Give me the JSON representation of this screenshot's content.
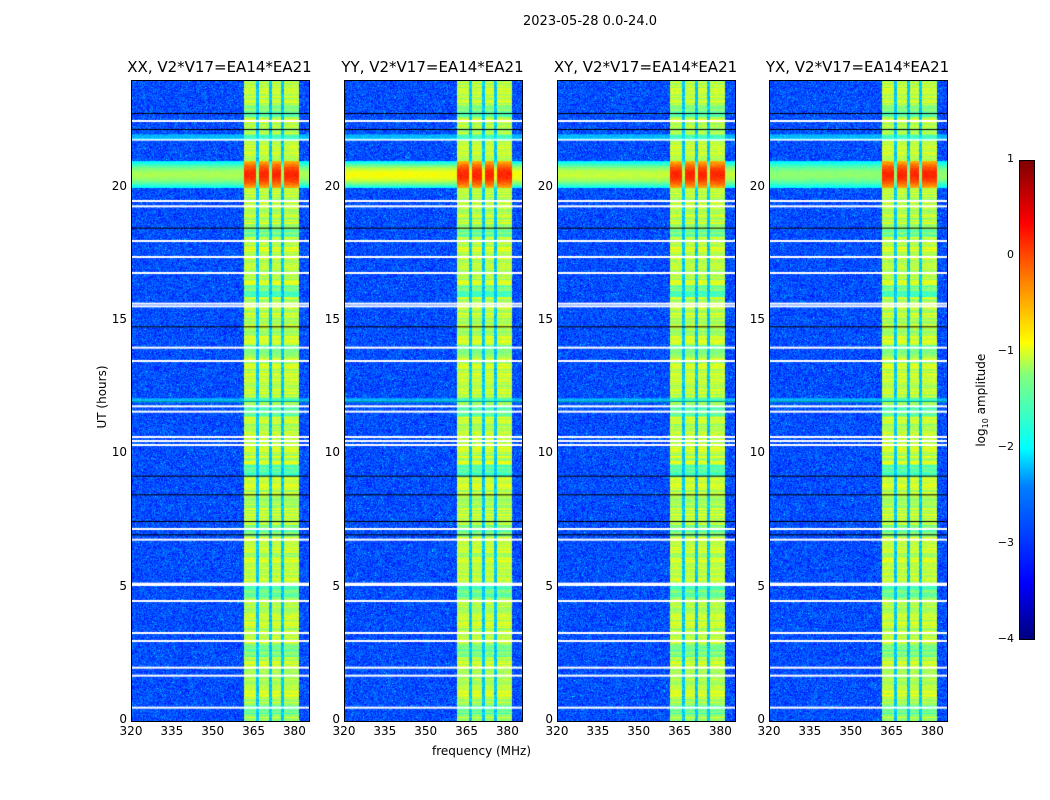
{
  "suptitle": "2023-05-28 0.0-24.0",
  "chart_data": {
    "type": "heatmap",
    "panels": [
      {
        "title": "XX, V2*V17=EA14*EA21",
        "flare_strength": 0.7
      },
      {
        "title": "YY, V2*V17=EA14*EA21",
        "flare_strength": 1.0
      },
      {
        "title": "XY, V2*V17=EA14*EA21",
        "flare_strength": 0.8
      },
      {
        "title": "YX, V2*V17=EA14*EA21",
        "flare_strength": 0.6
      }
    ],
    "xlabel": "frequency (MHz)",
    "ylabel": "UT (hours)",
    "xlim": [
      320,
      385
    ],
    "ylim": [
      0,
      24
    ],
    "xticks": [
      "320",
      "335",
      "350",
      "365",
      "380"
    ],
    "xtick_values": [
      320,
      335,
      350,
      365,
      380
    ],
    "yticks": [
      "0",
      "5",
      "10",
      "15",
      "20"
    ],
    "ytick_values": [
      0,
      5,
      10,
      15,
      20
    ],
    "colorbar": {
      "label": "log10 amplitude",
      "ticks": [
        "1",
        "0",
        "−1",
        "−2",
        "−3",
        "−4"
      ],
      "tick_values": [
        1,
        0,
        -1,
        -2,
        -3,
        -4
      ],
      "range": [
        -4,
        1
      ],
      "colormap": "jet"
    },
    "rfi_band_mhz": [
      361,
      381
    ],
    "rfi_gaps_mhz": [
      366,
      370.5,
      375
    ],
    "flare_hours": [
      20.0,
      21.0
    ],
    "flagged_hours": [
      0.5,
      1.7,
      2.0,
      3.0,
      3.3,
      4.5,
      5.1,
      5.15,
      6.8,
      7.2,
      10.35,
      10.5,
      10.65,
      11.6,
      11.8,
      13.5,
      14.0,
      15.55,
      15.65,
      16.8,
      17.4,
      18.0,
      19.3,
      19.5,
      21.8,
      22.5
    ],
    "dark_hours": [
      7.0,
      7.5,
      8.5,
      9.2,
      12.0,
      14.8,
      18.5,
      22.8,
      22.2
    ]
  }
}
